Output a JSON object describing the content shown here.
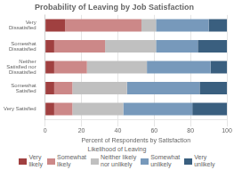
{
  "chart_data": {
    "type": "bar",
    "orientation": "horizontal",
    "stacked": true,
    "title": "Probability of Leaving by Job Satisfaction",
    "xlabel": "Percent of Respondents by Satisfaction",
    "categories": [
      "Very\nDissatisfied",
      "Somewhat\nDissatisfied",
      "Neither\nSatisfied nor\nDissatisfied",
      "Somewhat\nSatisfied",
      "Very Satisfied"
    ],
    "series": [
      {
        "name": "Very\nlikely",
        "color": "#a04040",
        "values": [
          11,
          5,
          5,
          5,
          5
        ]
      },
      {
        "name": "Somewhat\nlikely",
        "color": "#cc8888",
        "values": [
          42,
          28,
          18,
          10,
          10
        ]
      },
      {
        "name": "Neither likely\nnor unlikely",
        "color": "#c0c0c0",
        "values": [
          8,
          28,
          33,
          30,
          28
        ]
      },
      {
        "name": "Somewhat\nunlikely",
        "color": "#7799bb",
        "values": [
          29,
          23,
          35,
          40,
          38
        ]
      },
      {
        "name": "Very\nunlikely",
        "color": "#3a5f7f",
        "values": [
          10,
          16,
          9,
          15,
          19
        ]
      }
    ],
    "xlim": [
      0,
      100
    ],
    "xticks": [
      0,
      20,
      40,
      60,
      80,
      100
    ],
    "grid": true,
    "legend": "bottom",
    "legend_title": "Likelihood of Leaving"
  }
}
